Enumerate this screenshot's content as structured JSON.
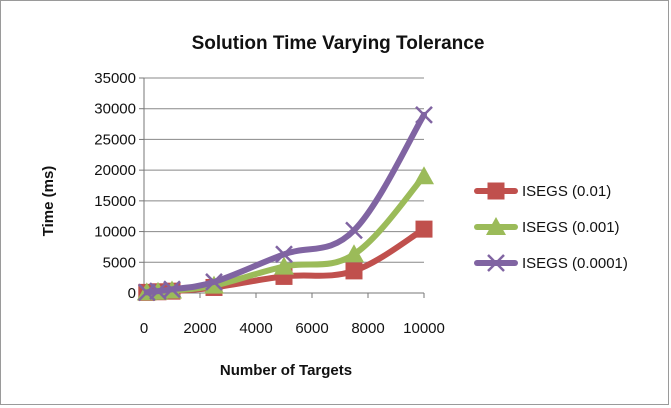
{
  "chart_data": {
    "type": "line",
    "title": "Solution Time Varying Tolerance",
    "xlabel": "Number of Targets",
    "ylabel": "Time (ms)",
    "xlim": [
      0,
      10000
    ],
    "ylim": [
      0,
      35000
    ],
    "x_ticks": [
      0,
      2000,
      4000,
      6000,
      8000,
      10000
    ],
    "y_ticks": [
      0,
      5000,
      10000,
      15000,
      20000,
      25000,
      30000,
      35000
    ],
    "x_tick_labels": [
      "0",
      "2000",
      "4000",
      "6000",
      "8000",
      "10000"
    ],
    "y_tick_labels": [
      "0",
      "5000",
      "10000",
      "15000",
      "20000",
      "25000",
      "30000",
      "35000"
    ],
    "grid": "horizontal",
    "legend_position": "right",
    "series": [
      {
        "name": "ISEGS (0.01)",
        "color": "#c0504d",
        "marker": "square",
        "x": [
          100,
          500,
          1000,
          2500,
          5000,
          7500,
          10000
        ],
        "values": [
          100,
          200,
          300,
          900,
          2700,
          3600,
          10400
        ]
      },
      {
        "name": "ISEGS (0.001)",
        "color": "#9bbb59",
        "marker": "triangle",
        "x": [
          100,
          500,
          1000,
          2500,
          5000,
          7500,
          10000
        ],
        "values": [
          100,
          200,
          400,
          1200,
          4300,
          6300,
          19000
        ]
      },
      {
        "name": "ISEGS (0.0001)",
        "color": "#8064a2",
        "marker": "x",
        "x": [
          100,
          500,
          1000,
          2500,
          5000,
          7500,
          10000
        ],
        "values": [
          100,
          300,
          600,
          1800,
          6300,
          10200,
          29000
        ]
      }
    ]
  }
}
